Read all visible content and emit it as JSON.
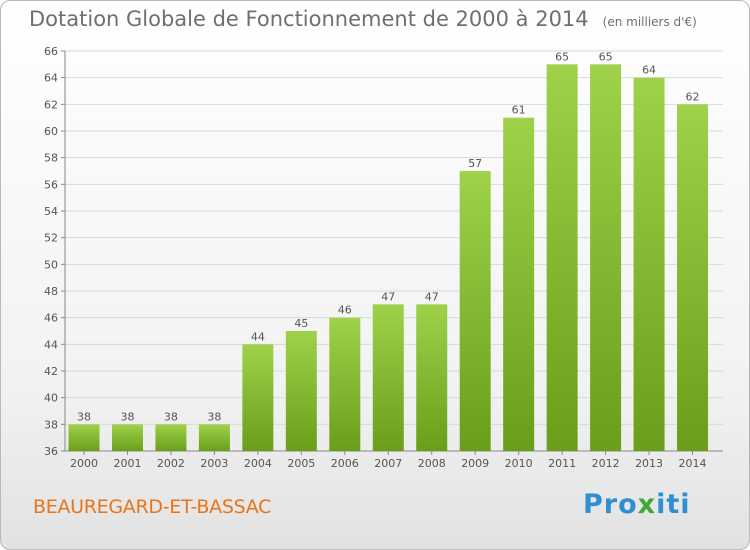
{
  "header": {
    "title": "Dotation Globale de Fonctionnement de 2000 à 2014",
    "subtitle": "(en milliers d'€)"
  },
  "footer": {
    "commune": "BEAUREGARD-ET-BASSAC",
    "logo": [
      "Pro",
      "x",
      "iti"
    ]
  },
  "colors": {
    "bar_light": "#9fd24a",
    "bar_dark": "#6a9e1a",
    "grid": "#d9d9d9",
    "axis_text": "#555555",
    "commune": "#e8751a"
  },
  "chart_data": {
    "type": "bar",
    "title": "Dotation Globale de Fonctionnement de 2000 à 2014",
    "subtitle": "(en milliers d'€)",
    "categories": [
      "2000",
      "2001",
      "2002",
      "2003",
      "2004",
      "2005",
      "2006",
      "2007",
      "2008",
      "2009",
      "2010",
      "2011",
      "2012",
      "2013",
      "2014"
    ],
    "values": [
      38,
      38,
      38,
      38,
      44,
      45,
      46,
      47,
      47,
      57,
      61,
      65,
      65,
      64,
      62
    ],
    "ylim": [
      36,
      66
    ],
    "yticks": [
      36,
      38,
      40,
      42,
      44,
      46,
      48,
      50,
      52,
      54,
      56,
      58,
      60,
      62,
      64,
      66
    ],
    "grid": true,
    "data_labels": true
  }
}
